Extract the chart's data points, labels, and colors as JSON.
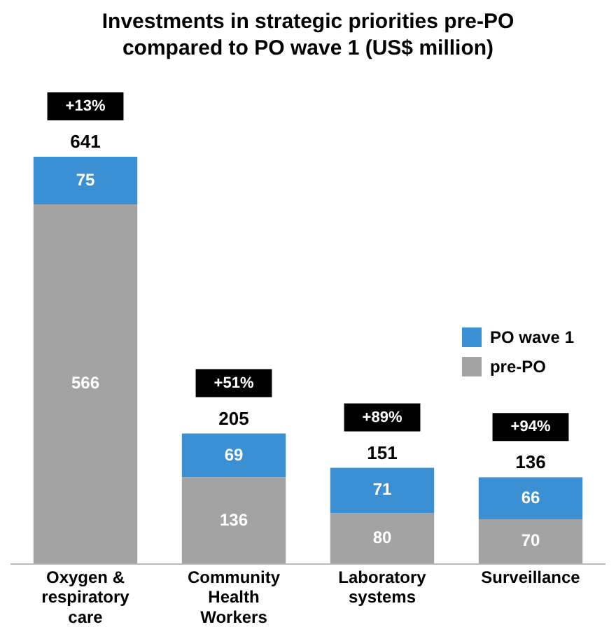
{
  "chart_data": {
    "type": "bar",
    "title": "Investments in strategic priorities pre-PO compared to PO wave 1 (US$ million)",
    "categories": [
      "Oxygen & respiratory care",
      "Community Health Workers",
      "Laboratory systems",
      "Surveillance"
    ],
    "stacked": true,
    "data_labels": true,
    "legend": "right",
    "totals": [
      "641",
      "205",
      "151",
      "136"
    ],
    "series": [
      {
        "name": "pre-PO",
        "color": "#a3a3a3",
        "values": [
          566,
          136,
          80,
          70
        ]
      },
      {
        "name": "PO wave 1",
        "color": "#3b8fd3",
        "values": [
          75,
          69,
          71,
          66
        ]
      }
    ],
    "annotations": [
      "+13%",
      "+51%",
      "+89%",
      "+94%"
    ]
  }
}
